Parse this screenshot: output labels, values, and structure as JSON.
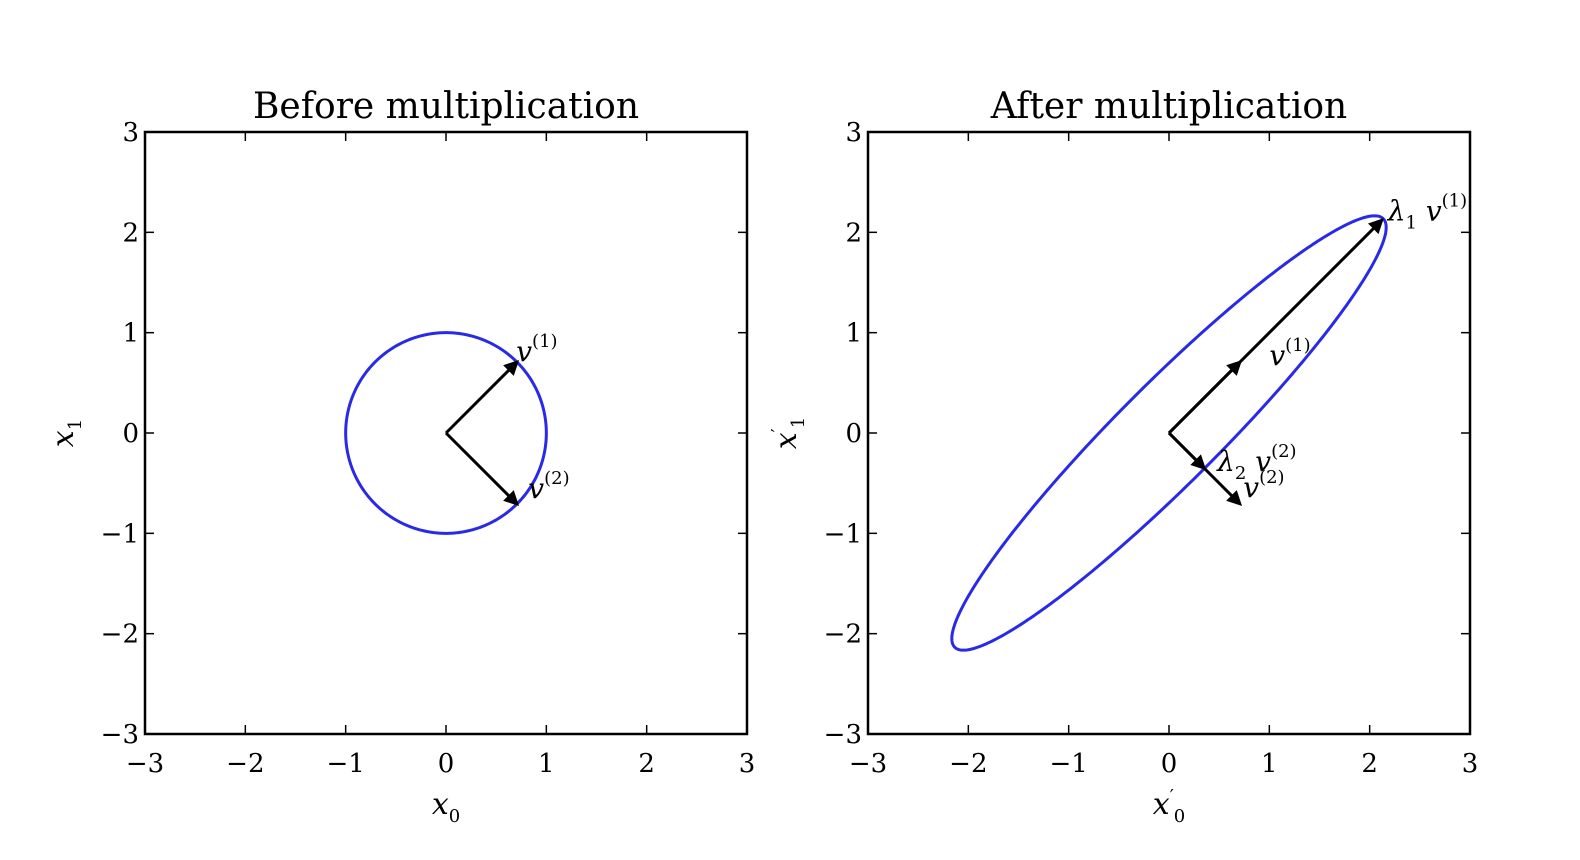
{
  "chart_data": [
    {
      "type": "line",
      "title": "Before multiplication",
      "xlabel": "x",
      "xlabel_sub": "0",
      "xlabel_prime": "",
      "ylabel": "x",
      "ylabel_sub": "1",
      "ylabel_prime": "",
      "xlim": [
        -3,
        3
      ],
      "ylim": [
        -3,
        3
      ],
      "xticks": [
        -3,
        -2,
        -1,
        0,
        1,
        2,
        3
      ],
      "yticks": [
        -3,
        -2,
        -1,
        0,
        1,
        2,
        3
      ],
      "xtick_labels": [
        "−3",
        "−2",
        "−1",
        "0",
        "1",
        "2",
        "3"
      ],
      "ytick_labels": [
        "−3",
        "−2",
        "−1",
        "0",
        "1",
        "2",
        "3"
      ],
      "grid": false,
      "curve": {
        "shape": "ellipse",
        "center": [
          0,
          0
        ],
        "semi_axes": [
          1,
          1
        ],
        "angle_deg": 45,
        "color": "#2a2ae6"
      },
      "vectors": [
        {
          "from": [
            0,
            0
          ],
          "to": [
            0.707,
            0.707
          ],
          "color": "#000000"
        },
        {
          "from": [
            0,
            0
          ],
          "to": [
            0.707,
            -0.707
          ],
          "color": "#000000"
        }
      ],
      "annotations": [
        {
          "base": "v",
          "sub": "",
          "base2": "",
          "sup": "(1)",
          "at": [
            0.7,
            0.72
          ]
        },
        {
          "base": "v",
          "sub": "",
          "base2": "",
          "sup": "(2)",
          "at": [
            0.82,
            -0.65
          ]
        }
      ]
    },
    {
      "type": "line",
      "title": "After multiplication",
      "xlabel": "x",
      "xlabel_sub": "0",
      "xlabel_prime": "′",
      "ylabel": "x",
      "ylabel_sub": "1",
      "ylabel_prime": "′",
      "xlim": [
        -3,
        3
      ],
      "ylim": [
        -3,
        3
      ],
      "xticks": [
        -3,
        -2,
        -1,
        0,
        1,
        2,
        3
      ],
      "yticks": [
        -3,
        -2,
        -1,
        0,
        1,
        2,
        3
      ],
      "xtick_labels": [
        "−3",
        "−2",
        "−1",
        "0",
        "1",
        "2",
        "3"
      ],
      "ytick_labels": [
        "−3",
        "−2",
        "−1",
        "0",
        "1",
        "2",
        "3"
      ],
      "grid": false,
      "curve": {
        "shape": "ellipse",
        "center": [
          0,
          0
        ],
        "semi_axes": [
          3.02,
          0.5
        ],
        "angle_deg": 45,
        "color": "#2a2ae6"
      },
      "vectors": [
        {
          "from": [
            0,
            0
          ],
          "to": [
            2.12,
            2.12
          ],
          "color": "#000000"
        },
        {
          "from": [
            0,
            0
          ],
          "to": [
            0.707,
            0.707
          ],
          "color": "#000000"
        },
        {
          "from": [
            0,
            0
          ],
          "to": [
            0.707,
            -0.707
          ],
          "color": "#000000"
        },
        {
          "from": [
            0,
            0
          ],
          "to": [
            0.35,
            -0.35
          ],
          "color": "#000000"
        }
      ],
      "annotations": [
        {
          "base": "λ",
          "sub": "1",
          "base2": "v",
          "sup": "(1)",
          "at": [
            2.18,
            2.12
          ]
        },
        {
          "base": "v",
          "sub": "",
          "base2": "",
          "sup": "(1)",
          "at": [
            1.0,
            0.68
          ]
        },
        {
          "base": "λ",
          "sub": "2",
          "base2": "v",
          "sup": "(2)",
          "at": [
            0.48,
            -0.38
          ]
        },
        {
          "base": "v",
          "sub": "",
          "base2": "",
          "sup": "(2)",
          "at": [
            0.74,
            -0.64
          ]
        }
      ]
    }
  ]
}
